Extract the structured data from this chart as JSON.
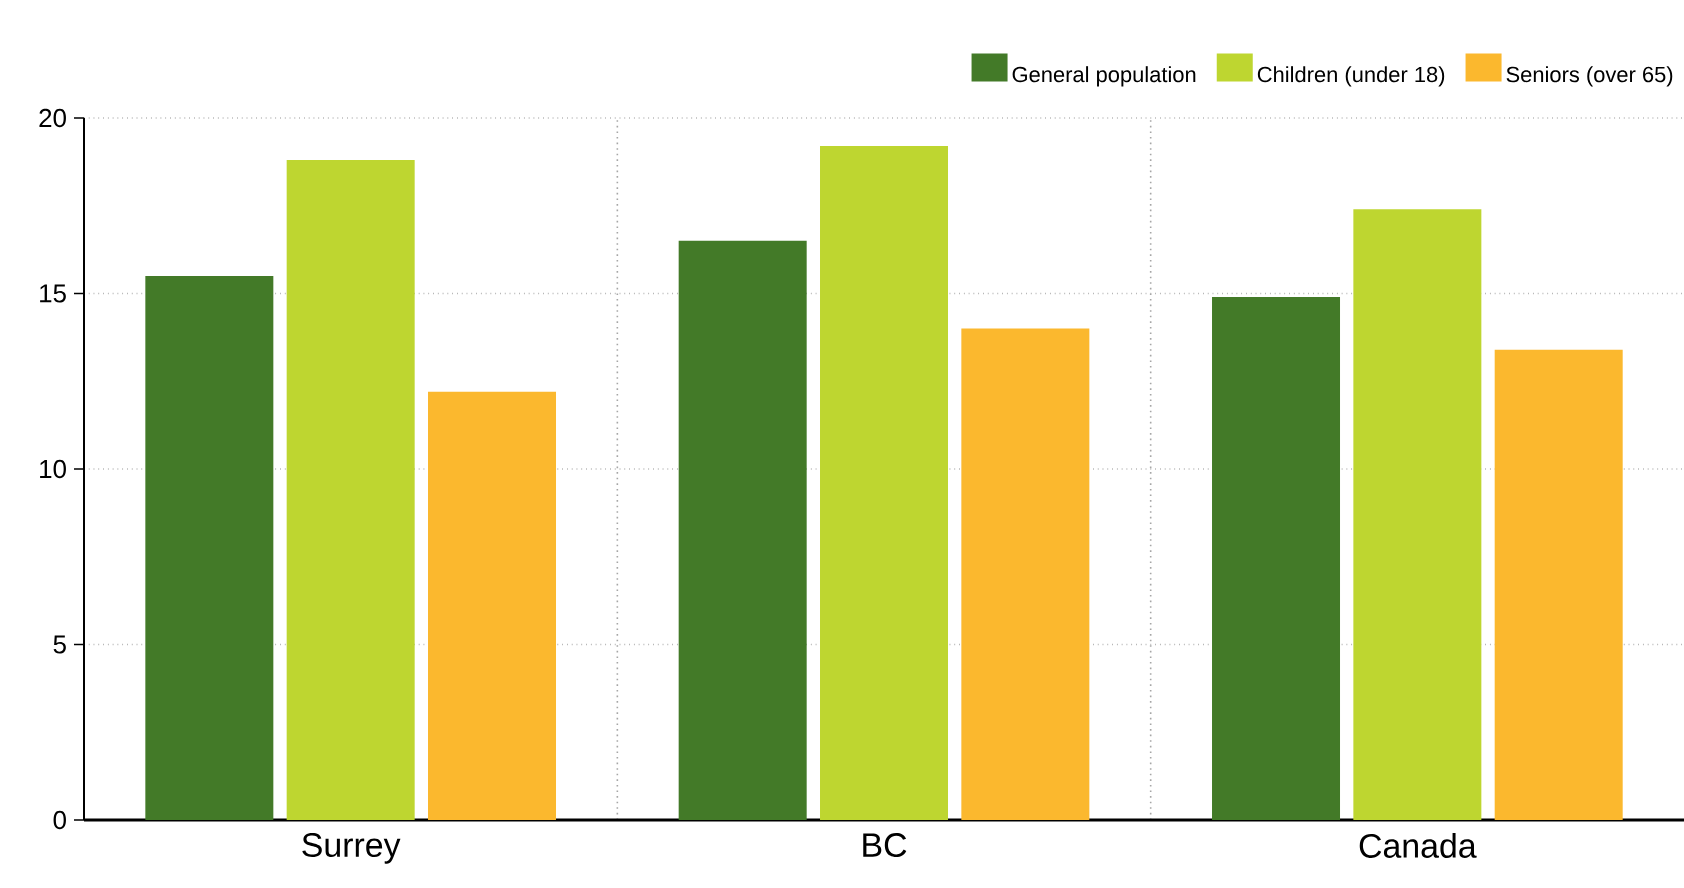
{
  "chart_data": {
    "type": "bar",
    "categories": [
      "Surrey",
      "BC",
      "Canada"
    ],
    "series": [
      {
        "name": "General population",
        "color": "#437a28",
        "values": [
          15.5,
          16.5,
          14.9
        ]
      },
      {
        "name": "Children (under 18)",
        "color": "#bed630",
        "values": [
          18.8,
          19.2,
          17.4
        ]
      },
      {
        "name": "Seniors (over 65)",
        "color": "#fbb82e",
        "values": [
          12.2,
          14.0,
          13.4
        ]
      }
    ],
    "ylim": [
      0,
      20
    ],
    "yticks": [
      0,
      5,
      10,
      15,
      20
    ],
    "grid": true,
    "legend": "top right"
  }
}
